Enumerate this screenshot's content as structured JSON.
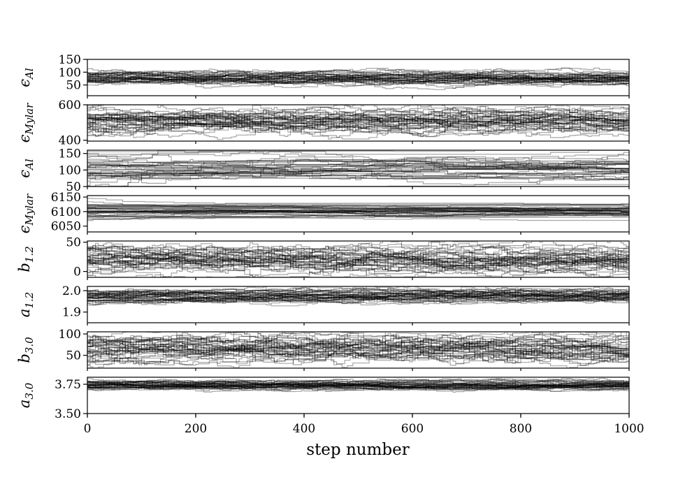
{
  "figure": {
    "background": "#ffffff",
    "line_color": "#000000",
    "trace_alpha": 0.35,
    "walkers": 40
  },
  "chart_data": [
    {
      "type": "line",
      "ylabel": "ϵ",
      "ylabel_sub": "Al",
      "ylim": [
        8,
        150
      ],
      "yticks": [
        50,
        100,
        150
      ],
      "ytick_labels": [
        "50",
        "100",
        "150"
      ],
      "center": 75,
      "spread": 10,
      "converged": true
    },
    {
      "type": "line",
      "ylabel": "ϵ",
      "ylabel_sub": "Mylar",
      "ylim": [
        395,
        600
      ],
      "yticks": [
        400,
        600
      ],
      "ytick_labels": [
        "400",
        "600"
      ],
      "center": 510,
      "spread": 28,
      "converged": true
    },
    {
      "type": "line",
      "ylabel": "ϵ",
      "ylabel_sub": "Al",
      "ylim": [
        50,
        160
      ],
      "yticks": [
        50,
        100,
        150
      ],
      "ytick_labels": [
        "50",
        "100",
        "150"
      ],
      "center": 108,
      "spread": 15,
      "converged": false
    },
    {
      "type": "line",
      "ylabel": "ϵ",
      "ylabel_sub": "Mylar",
      "ylim": [
        6030,
        6155
      ],
      "yticks": [
        6050,
        6100,
        6150
      ],
      "ytick_labels": [
        "6050",
        "6100",
        "6150"
      ],
      "center": 6098,
      "spread": 6,
      "converged": false
    },
    {
      "type": "line",
      "ylabel": "b",
      "ylabel_sub": "1.2",
      "ylim": [
        -10,
        52
      ],
      "yticks": [
        0,
        50
      ],
      "ytick_labels": [
        "0",
        "50"
      ],
      "center": 20,
      "spread": 9,
      "converged": true
    },
    {
      "type": "line",
      "ylabel": "a",
      "ylabel_sub": "1.2",
      "ylim": [
        1.85,
        2.02
      ],
      "yticks": [
        1.9,
        2.0
      ],
      "ytick_labels": [
        "1.9",
        "2.0"
      ],
      "center": 1.975,
      "spread": 0.012,
      "converged": true
    },
    {
      "type": "line",
      "ylabel": "b",
      "ylabel_sub": "3.0",
      "ylim": [
        20,
        105
      ],
      "yticks": [
        50,
        100
      ],
      "ytick_labels": [
        "50",
        "100"
      ],
      "center": 68,
      "spread": 13,
      "converged": true
    },
    {
      "type": "line",
      "ylabel": "a",
      "ylabel_sub": "3.0",
      "ylim": [
        3.5,
        3.81
      ],
      "yticks": [
        3.5,
        3.75
      ],
      "ytick_labels": [
        "3.50",
        "3.75"
      ],
      "center": 3.74,
      "spread": 0.015,
      "converged": true
    }
  ],
  "x_axis": {
    "xlim": [
      0,
      1000
    ],
    "ticks": [
      0,
      200,
      400,
      600,
      800,
      1000
    ],
    "tick_labels": [
      "0",
      "200",
      "400",
      "600",
      "800",
      "1000"
    ],
    "label": "step number"
  }
}
